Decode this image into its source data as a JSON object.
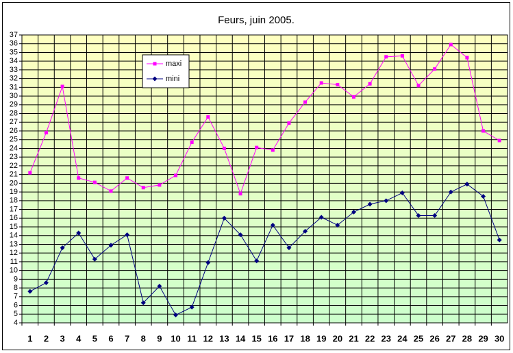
{
  "chart_data": {
    "type": "line",
    "title": "Feurs, juin 2005.",
    "categories": [
      "1",
      "2",
      "3",
      "4",
      "5",
      "6",
      "7",
      "8",
      "9",
      "10",
      "11",
      "12",
      "13",
      "14",
      "15",
      "16",
      "17",
      "18",
      "19",
      "20",
      "21",
      "22",
      "23",
      "24",
      "25",
      "26",
      "27",
      "28",
      "29",
      "30"
    ],
    "series": [
      {
        "name": "maxi",
        "color": "#ff00ff",
        "marker": "square",
        "values": [
          21.2,
          25.8,
          31.1,
          20.6,
          20.1,
          19.1,
          20.6,
          19.5,
          19.8,
          20.9,
          24.7,
          27.6,
          24.0,
          18.8,
          24.1,
          23.8,
          26.9,
          29.3,
          31.5,
          31.3,
          29.9,
          31.4,
          34.5,
          34.6,
          31.2,
          33.1,
          35.9,
          34.4,
          26.0,
          24.9
        ]
      },
      {
        "name": "mini",
        "color": "#000080",
        "marker": "diamond",
        "values": [
          7.6,
          8.6,
          12.6,
          14.3,
          11.3,
          12.9,
          14.1,
          6.3,
          8.2,
          4.9,
          5.8,
          10.9,
          16.0,
          14.1,
          11.1,
          15.2,
          12.6,
          14.5,
          16.1,
          15.2,
          16.7,
          17.6,
          18.0,
          18.9,
          16.3,
          16.3,
          19.0,
          19.9,
          18.5,
          13.5
        ]
      }
    ],
    "ylim": [
      4,
      37
    ],
    "yticks": [
      4,
      5,
      6,
      7,
      8,
      9,
      10,
      11,
      12,
      13,
      14,
      15,
      16,
      17,
      18,
      19,
      20,
      21,
      22,
      23,
      24,
      25,
      26,
      27,
      28,
      29,
      30,
      31,
      32,
      33,
      34,
      35,
      36,
      37
    ],
    "grid": true
  }
}
